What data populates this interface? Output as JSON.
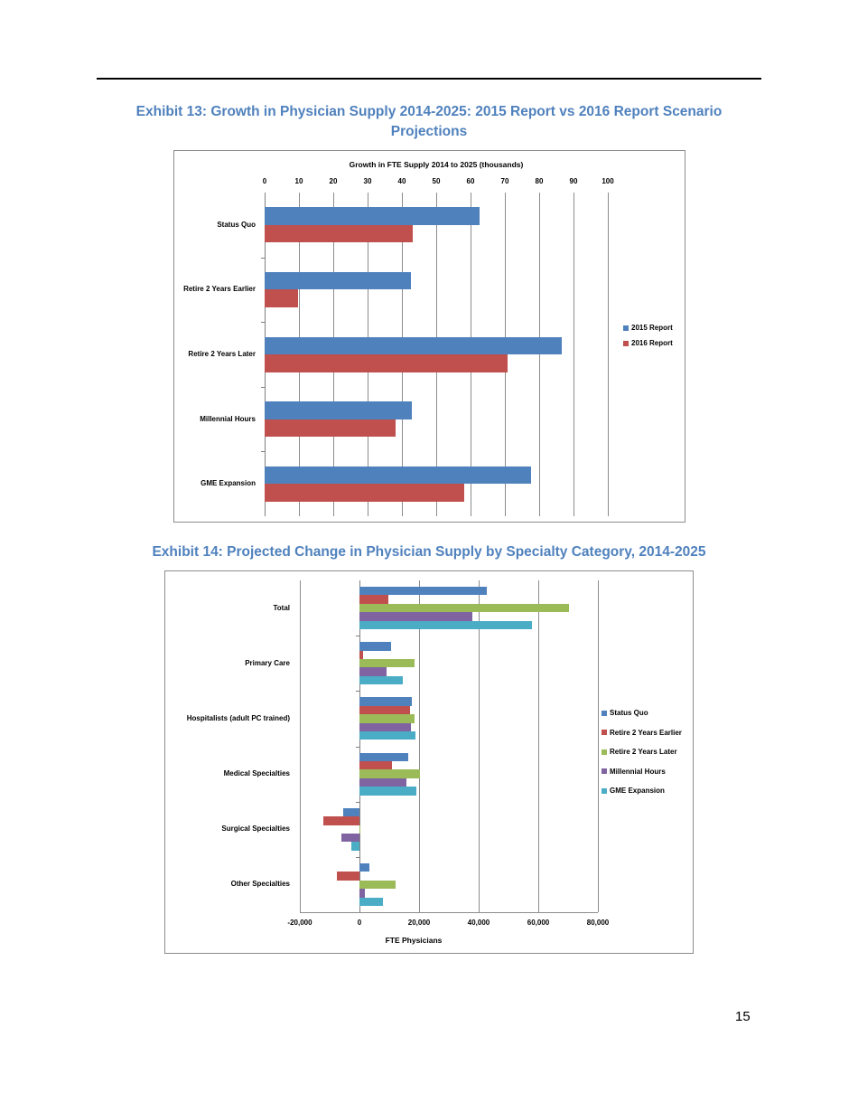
{
  "page": {
    "number": "15"
  },
  "exhibit13": {
    "title_line1": "Exhibit 13: Growth in Physician Supply 2014-2025: 2015 Report vs 2016 Report Scenario",
    "title_line2": "Projections"
  },
  "exhibit14": {
    "title": "Exhibit 14: Projected Change in Physician Supply by Specialty Category, 2014-2025"
  },
  "chart_data": [
    {
      "type": "bar",
      "orientation": "horizontal",
      "title": "Growth in FTE Supply 2014 to 2025 (thousands)",
      "xlabel": "Growth in FTE Supply 2014 to 2025 (thousands)",
      "ylabel": "",
      "xlim": [
        0,
        100
      ],
      "xticks": [
        "0",
        "10",
        "20",
        "30",
        "40",
        "50",
        "60",
        "70",
        "80",
        "90",
        "100"
      ],
      "x_axis_position": "top",
      "grid": true,
      "legend_position": "right",
      "categories": [
        "Status Quo",
        "Retire 2 Years Earlier",
        "Retire 2 Years Later",
        "Millennial Hours",
        "GME Expansion"
      ],
      "series": [
        {
          "name": "2015 Report",
          "color": "#4f81bd",
          "values": [
            62.5,
            42.5,
            86.6,
            43.0,
            77.5
          ]
        },
        {
          "name": "2016 Report",
          "color": "#c0504d",
          "values": [
            43.2,
            9.8,
            70.7,
            38.2,
            58.2
          ]
        }
      ]
    },
    {
      "type": "bar",
      "orientation": "horizontal",
      "title": "",
      "xlabel": "FTE Physicians",
      "ylabel": "",
      "xlim": [
        -20000,
        80000
      ],
      "xticks": [
        "-20,000",
        "0",
        "20,000",
        "40,000",
        "60,000",
        "80,000"
      ],
      "x_axis_position": "bottom",
      "grid": true,
      "legend_position": "right",
      "categories": [
        "Total",
        "Primary Care",
        "Hospitalists (adult PC trained)",
        "Medical Specialties",
        "Surgical Specialties",
        "Other Specialties"
      ],
      "series": [
        {
          "name": "Status Quo",
          "color": "#4f81bd",
          "values": [
            42800,
            10600,
            17700,
            16300,
            -5500,
            3300
          ]
        },
        {
          "name": "Retire 2 Years Earlier",
          "color": "#c0504d",
          "values": [
            9600,
            1100,
            17000,
            10800,
            -12200,
            -7600
          ]
        },
        {
          "name": "Retire 2 Years Later",
          "color": "#9bbb59",
          "values": [
            70200,
            18500,
            18400,
            20400,
            400,
            12200
          ]
        },
        {
          "name": "Millennial Hours",
          "color": "#8064a2",
          "values": [
            37900,
            9100,
            17200,
            15700,
            -6200,
            1800
          ]
        },
        {
          "name": "GME Expansion",
          "color": "#4bacc6",
          "values": [
            57800,
            14500,
            18800,
            19100,
            -2700,
            7800
          ]
        }
      ]
    }
  ]
}
